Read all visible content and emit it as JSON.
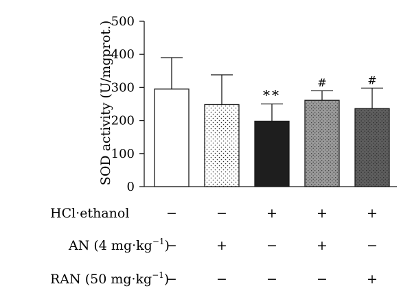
{
  "chart_data": {
    "type": "bar",
    "ylabel": "SOD activity (U/mgprot.)",
    "ylim": [
      0,
      500
    ],
    "yticks": [
      "0",
      "100",
      "200",
      "300",
      "400",
      "500"
    ],
    "ytick_values": [
      0,
      100,
      200,
      300,
      400,
      500
    ],
    "groups": [
      {
        "mean": 295,
        "error": 95,
        "annotation": "",
        "fill": "#ffffff",
        "pattern": "none"
      },
      {
        "mean": 248,
        "error": 90,
        "annotation": "",
        "fill": "#ffffff",
        "pattern": "sparse-dots"
      },
      {
        "mean": 198,
        "error": 52,
        "annotation": "**",
        "fill": "#1e1e1e",
        "pattern": "none"
      },
      {
        "mean": 261,
        "error": 29,
        "annotation": "#",
        "fill": "#9a9a9a",
        "pattern": "dense-dots"
      },
      {
        "mean": 236,
        "error": 62,
        "annotation": "#",
        "fill": "#5e5e5e",
        "pattern": "dense-dots"
      }
    ],
    "treatments": [
      {
        "label": "HCl·ethanol",
        "marks": [
          "−",
          "−",
          "+",
          "+",
          "+"
        ]
      },
      {
        "label_main": "AN (4 mg·kg",
        "label_sup": "−1",
        "label_end": ")",
        "marks": [
          "−",
          "+",
          "−",
          "+",
          "−"
        ]
      },
      {
        "label_main": "RAN (50 mg·kg",
        "label_sup": "−1",
        "label_end": ")",
        "marks": [
          "−",
          "−",
          "−",
          "−",
          "+"
        ]
      }
    ]
  }
}
